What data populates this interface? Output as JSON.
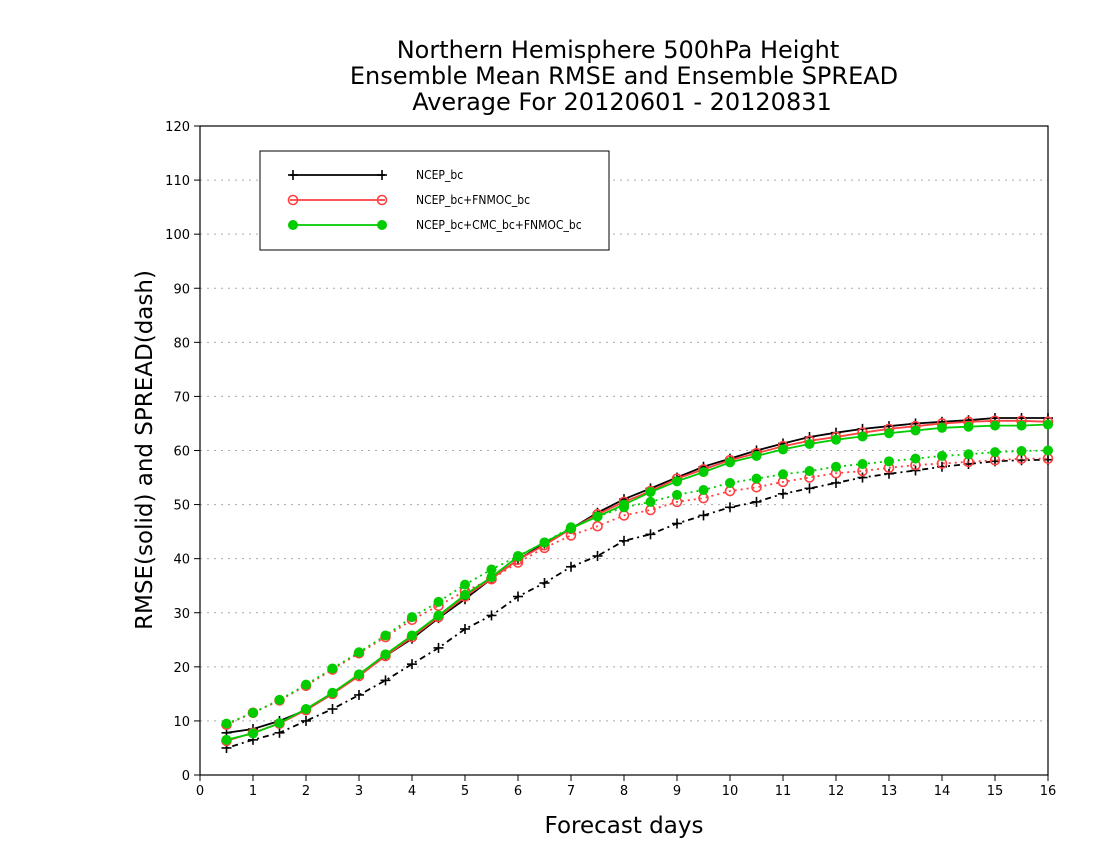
{
  "chart_data": {
    "type": "line",
    "title": [
      "Northern Hemisphere 500hPa Height",
      "Ensemble Mean RMSE and Ensemble SPREAD",
      "Average For 20120601 - 20120831"
    ],
    "xlabel": "Forecast days",
    "ylabel": "RMSE(solid) and SPREAD(dash)",
    "xlim": [
      0,
      16
    ],
    "ylim": [
      0,
      120
    ],
    "xticks": [
      0,
      1,
      2,
      3,
      4,
      5,
      6,
      7,
      8,
      9,
      10,
      11,
      12,
      13,
      14,
      15,
      16
    ],
    "yticks": [
      0,
      10,
      20,
      30,
      40,
      50,
      60,
      70,
      80,
      90,
      100,
      110,
      120
    ],
    "grid": "horizontal dotted",
    "legend_position": "top-left",
    "x": [
      0.5,
      1,
      1.5,
      2,
      2.5,
      3,
      3.5,
      4,
      4.5,
      5,
      5.5,
      6,
      6.5,
      7,
      7.5,
      8,
      8.5,
      9,
      9.5,
      10,
      10.5,
      11,
      11.5,
      12,
      12.5,
      13,
      13.5,
      14,
      14.5,
      15,
      15.5,
      16
    ],
    "series": [
      {
        "name": "NCEP_bc",
        "color": "#000000",
        "marker": "plus",
        "rmse": [
          7.8,
          8.5,
          10.0,
          12.0,
          15.0,
          18.5,
          22.0,
          25.2,
          29.0,
          32.5,
          36.3,
          39.8,
          42.8,
          45.5,
          48.5,
          51.0,
          53.0,
          55.0,
          57.0,
          58.5,
          60.0,
          61.3,
          62.5,
          63.3,
          64.0,
          64.5,
          65.0,
          65.3,
          65.6,
          66.0,
          66.0,
          66.0
        ],
        "spread": [
          5.0,
          6.5,
          7.8,
          10.0,
          12.2,
          14.8,
          17.5,
          20.5,
          23.5,
          27.0,
          29.5,
          33.0,
          35.5,
          38.5,
          40.5,
          43.3,
          44.5,
          46.5,
          48.0,
          49.5,
          50.5,
          52.0,
          53.0,
          54.0,
          55.0,
          55.7,
          56.3,
          57.0,
          57.5,
          58.0,
          58.2,
          58.3
        ]
      },
      {
        "name": "NCEP_bc+FNMOC_bc",
        "color": "#ff4040",
        "marker": "open-circle",
        "rmse": [
          6.3,
          7.8,
          9.5,
          12.0,
          15.0,
          18.3,
          22.0,
          25.5,
          29.2,
          33.0,
          36.3,
          39.8,
          42.5,
          45.5,
          48.2,
          50.5,
          52.5,
          54.8,
          56.5,
          58.2,
          59.5,
          60.8,
          61.8,
          62.5,
          63.3,
          64.0,
          64.5,
          65.0,
          65.3,
          65.5,
          65.5,
          65.3
        ],
        "spread": [
          9.3,
          11.5,
          13.8,
          16.5,
          19.5,
          22.5,
          25.5,
          28.7,
          31.3,
          34.0,
          36.2,
          39.3,
          42.0,
          44.3,
          46.0,
          48.0,
          49.0,
          50.5,
          51.2,
          52.5,
          53.2,
          54.2,
          55.0,
          55.8,
          56.2,
          56.8,
          57.3,
          57.6,
          57.9,
          58.2,
          58.5,
          58.5
        ]
      },
      {
        "name": "NCEP_bc+CMC_bc+FNMOC_bc",
        "color": "#00cc00",
        "marker": "filled-circle",
        "rmse": [
          6.5,
          7.7,
          9.6,
          12.2,
          15.2,
          18.6,
          22.3,
          25.8,
          29.5,
          33.3,
          36.6,
          40.4,
          43.0,
          45.6,
          47.8,
          50.0,
          52.3,
          54.3,
          56.0,
          57.8,
          59.0,
          60.2,
          61.2,
          62.0,
          62.6,
          63.2,
          63.7,
          64.2,
          64.4,
          64.6,
          64.6,
          64.8
        ],
        "spread": [
          9.5,
          11.5,
          13.9,
          16.7,
          19.7,
          22.7,
          25.8,
          29.2,
          32.0,
          35.2,
          38.0,
          40.5,
          43.0,
          45.8,
          47.8,
          49.5,
          50.5,
          51.8,
          52.7,
          54.0,
          54.8,
          55.6,
          56.2,
          57.0,
          57.5,
          58.0,
          58.5,
          59.0,
          59.3,
          59.7,
          59.9,
          60.0
        ]
      }
    ]
  }
}
